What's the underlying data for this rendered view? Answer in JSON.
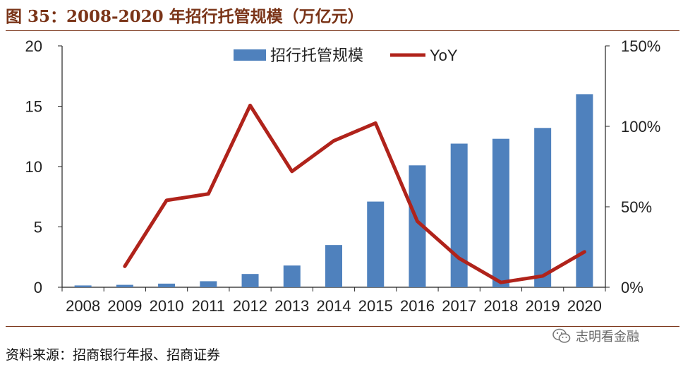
{
  "title": "图 35：2008-2020 年招行托管规模（万亿元）",
  "source": "资料来源：招商银行年报、招商证券",
  "watermark": "志明看金融",
  "chart_data": {
    "type": "bar+line",
    "categories": [
      "2008",
      "2009",
      "2010",
      "2011",
      "2012",
      "2013",
      "2014",
      "2015",
      "2016",
      "2017",
      "2018",
      "2019",
      "2020"
    ],
    "series": [
      {
        "name": "招行托管规模",
        "type": "bar",
        "axis": "left",
        "color": "#4f81bd",
        "values": [
          0.15,
          0.2,
          0.3,
          0.5,
          1.1,
          1.8,
          3.5,
          7.1,
          10.1,
          11.9,
          12.3,
          13.2,
          16.0
        ]
      },
      {
        "name": "YoY",
        "type": "line",
        "axis": "right",
        "color": "#b0231b",
        "values": [
          null,
          13,
          54,
          58,
          113,
          72,
          91,
          102,
          41,
          18,
          3,
          7,
          22
        ]
      }
    ],
    "y_left": {
      "min": 0,
      "max": 20,
      "ticks": [
        "0",
        "5",
        "10",
        "15",
        "20"
      ]
    },
    "y_right": {
      "min": 0,
      "max": 150,
      "ticks": [
        "0%",
        "50%",
        "100%",
        "150%"
      ]
    },
    "legend": "top-center",
    "grid": false
  }
}
